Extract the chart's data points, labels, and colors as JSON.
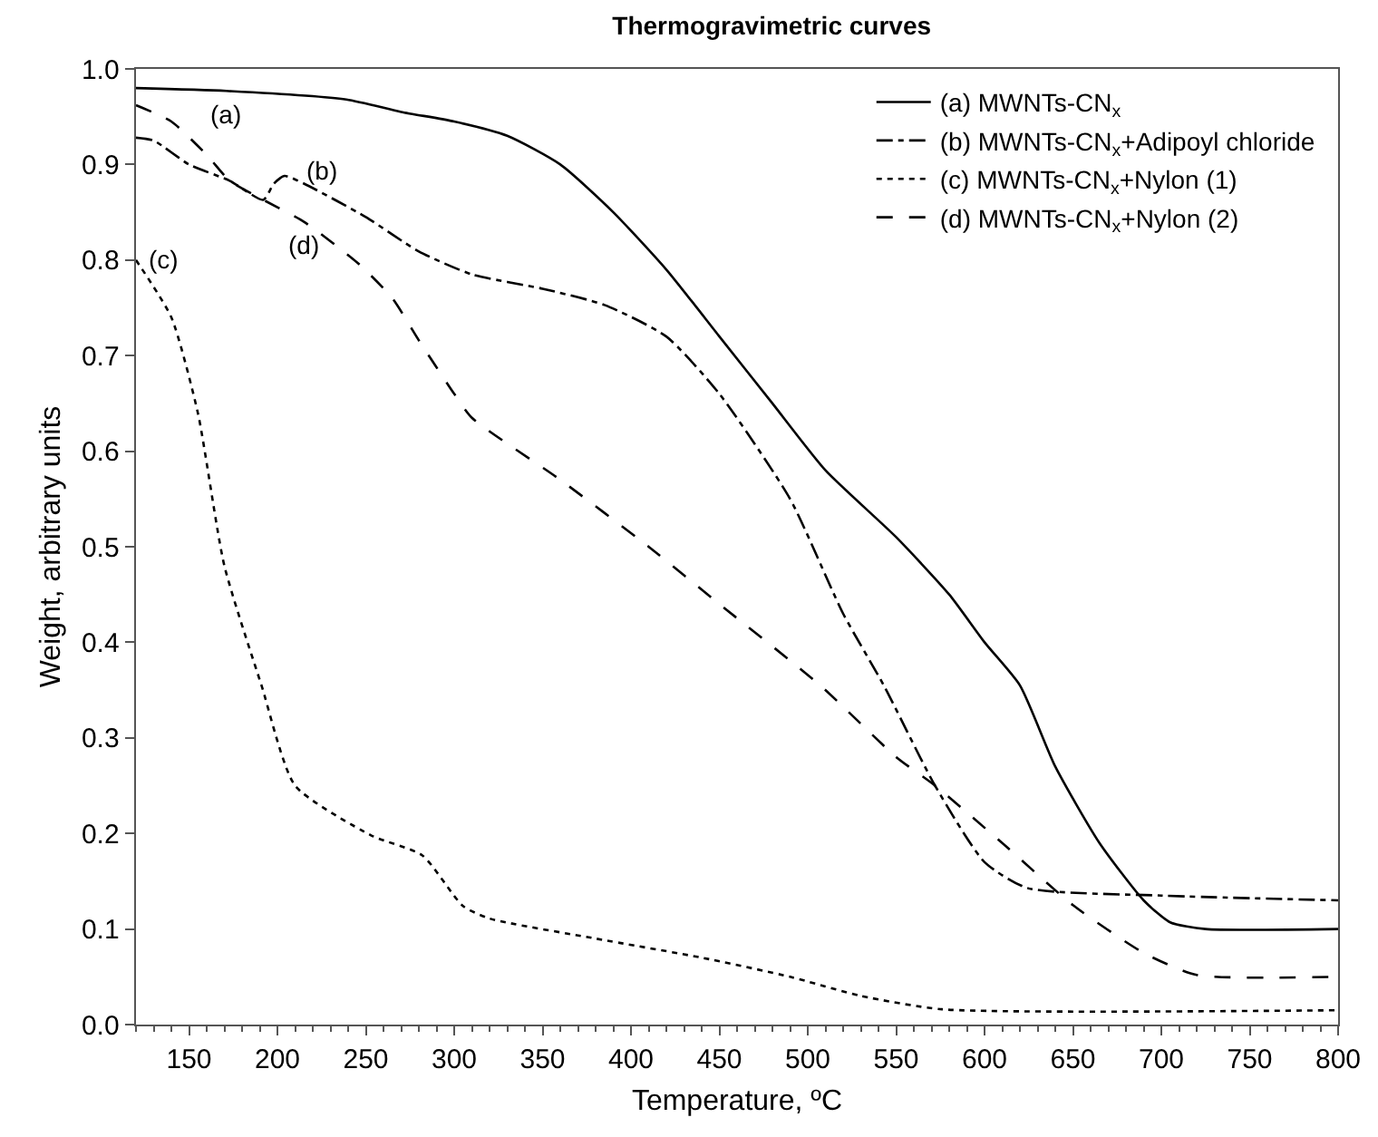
{
  "chart_data": {
    "type": "line",
    "title": "Thermogravimetric curves",
    "xlabel": "Temperature, ºC",
    "ylabel": "Weight, arbitrary units",
    "xlim": [
      120,
      800
    ],
    "xticks": [
      150,
      200,
      250,
      300,
      350,
      400,
      450,
      500,
      550,
      600,
      650,
      700,
      750,
      800
    ],
    "ylim": [
      0,
      1
    ],
    "yticks": [
      {
        "value": 0,
        "label": "0.0"
      },
      {
        "value": 0.1,
        "label": "0.1"
      },
      {
        "value": 0.2,
        "label": "0.2"
      },
      {
        "value": 0.3,
        "label": "0.3"
      },
      {
        "value": 0.4,
        "label": "0.4"
      },
      {
        "value": 0.5,
        "label": "0.5"
      },
      {
        "value": 0.6,
        "label": "0.6"
      },
      {
        "value": 0.7,
        "label": "0.7"
      },
      {
        "value": 0.8,
        "label": "0.8"
      },
      {
        "value": 0.9,
        "label": "0.9"
      },
      {
        "value": 1,
        "label": "1.0"
      }
    ],
    "grid": false,
    "legend": "top right",
    "marker": "none",
    "series": [
      {
        "name": "(a) MWNTs-CN$_{x}$",
        "color": "#000000",
        "line_style": "solid",
        "x": [
          120,
          171,
          239,
          270,
          300,
          330,
          360,
          390,
          420,
          450,
          480,
          510,
          550,
          580,
          600,
          620,
          640,
          665,
          690,
          705,
          725,
          800
        ],
        "values": [
          0.98,
          0.977,
          0.968,
          0.955,
          0.945,
          0.93,
          0.9,
          0.85,
          0.79,
          0.72,
          0.65,
          0.58,
          0.51,
          0.45,
          0.4,
          0.355,
          0.27,
          0.19,
          0.13,
          0.107,
          0.1,
          0.1
        ]
      },
      {
        "name": "(b) MWNTs-CN$_{x}$+Adipoyl chloride",
        "color": "#000000",
        "line_style": "dashdot",
        "x": [
          120,
          130,
          150,
          173,
          192,
          198,
          204,
          215,
          250,
          280,
          310,
          350,
          385,
          420,
          450,
          490,
          520,
          543,
          572,
          600,
          624,
          700,
          800
        ],
        "values": [
          0.928,
          0.925,
          0.9,
          0.883,
          0.863,
          0.88,
          0.888,
          0.88,
          0.845,
          0.809,
          0.785,
          0.77,
          0.753,
          0.72,
          0.66,
          0.55,
          0.43,
          0.355,
          0.25,
          0.17,
          0.143,
          0.135,
          0.13
        ]
      },
      {
        "name": "(c) MWNTs-CN$_{x}$+Nylon (1)",
        "color": "#000000",
        "line_style": "dotted",
        "x": [
          120,
          140,
          155,
          170,
          191,
          210,
          253,
          282,
          305,
          320,
          380,
          440,
          490,
          530,
          576,
          800
        ],
        "values": [
          0.8,
          0.74,
          0.64,
          0.48,
          0.355,
          0.25,
          0.198,
          0.177,
          0.124,
          0.111,
          0.09,
          0.07,
          0.05,
          0.03,
          0.016,
          0.015
        ]
      },
      {
        "name": "(d) MWNTs-CN$_{x}$+Nylon (2)",
        "color": "#000000",
        "line_style": "dashed",
        "x": [
          120,
          140,
          160,
          173,
          192,
          215,
          246,
          265,
          280,
          300,
          310,
          360,
          410,
          450,
          507,
          550,
          572,
          610,
          650,
          690,
          720,
          800
        ],
        "values": [
          0.962,
          0.945,
          0.91,
          0.883,
          0.863,
          0.84,
          0.796,
          0.76,
          0.716,
          0.66,
          0.635,
          0.57,
          0.5,
          0.44,
          0.355,
          0.28,
          0.25,
          0.19,
          0.125,
          0.075,
          0.052,
          0.05
        ]
      }
    ],
    "annotations": [
      {
        "text": "(a)",
        "x": 171,
        "y": 0.977
      },
      {
        "text": "(b)",
        "x": 204,
        "y": 0.888
      },
      {
        "text": "(c)",
        "x": 120,
        "y": 0.8
      },
      {
        "text": "(d)",
        "x": 215,
        "y": 0.84
      }
    ]
  }
}
